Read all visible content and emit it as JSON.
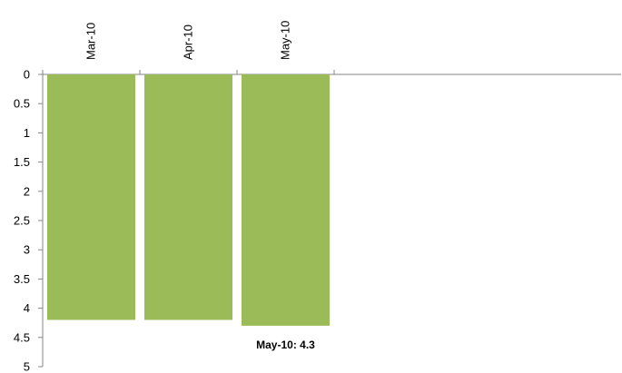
{
  "chart_data": {
    "type": "bar",
    "orientation": "vertical-inverted",
    "categories": [
      "Mar-10",
      "Apr-10",
      "May-10"
    ],
    "values": [
      4.2,
      4.2,
      4.3
    ],
    "ylim": [
      0,
      5
    ],
    "y_reversed": true,
    "y_ticks": [
      "0",
      "0.5",
      "1",
      "1.5",
      "2",
      "2.5",
      "3",
      "3.5",
      "4",
      "4.5",
      "5"
    ],
    "category_axis_position": "top",
    "category_label_rotation": "vertical",
    "bar_color": "#9BBB59",
    "grid": false,
    "legend": "none",
    "data_labels": [
      {
        "text": "May-10: 4.3",
        "category_index": 2
      }
    ]
  }
}
